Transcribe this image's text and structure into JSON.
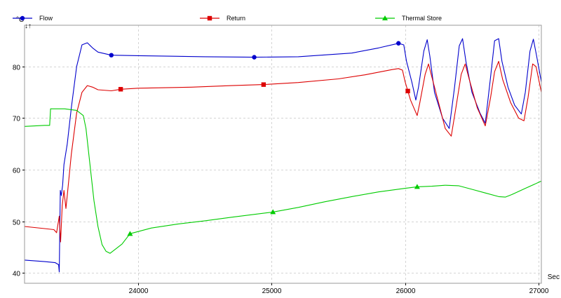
{
  "chart_data": {
    "type": "line",
    "ylabel": "°C",
    "xlabel": "Sec",
    "xlim": [
      23150,
      27020
    ],
    "ylim": [
      38,
      88
    ],
    "x_ticks": [
      24000,
      25000,
      26000,
      27000
    ],
    "y_ticks": [
      40,
      50,
      60,
      70,
      80
    ],
    "grid": true,
    "legend_position": "top",
    "series": [
      {
        "name": "Flow",
        "color": "#0000cc",
        "marker": "circle",
        "marker_x": [
          23800,
          24870,
          25950
        ],
        "points": [
          [
            23150,
            42.5
          ],
          [
            23300,
            42.2
          ],
          [
            23380,
            42
          ],
          [
            23405,
            41.6
          ],
          [
            23410,
            40.2
          ],
          [
            23418,
            56
          ],
          [
            23425,
            55
          ],
          [
            23435,
            57
          ],
          [
            23445,
            61
          ],
          [
            23470,
            65
          ],
          [
            23500,
            72
          ],
          [
            23540,
            80
          ],
          [
            23580,
            84.2
          ],
          [
            23620,
            84.6
          ],
          [
            23660,
            83.6
          ],
          [
            23700,
            82.8
          ],
          [
            23800,
            82.2
          ],
          [
            24000,
            82.1
          ],
          [
            24500,
            81.9
          ],
          [
            24870,
            81.8
          ],
          [
            25200,
            81.9
          ],
          [
            25600,
            82.6
          ],
          [
            25800,
            83.6
          ],
          [
            25950,
            84.5
          ],
          [
            25990,
            84.2
          ],
          [
            26010,
            81
          ],
          [
            26050,
            77
          ],
          [
            26080,
            73.5
          ],
          [
            26100,
            76
          ],
          [
            26140,
            83
          ],
          [
            26165,
            85.2
          ],
          [
            26185,
            82
          ],
          [
            26220,
            75
          ],
          [
            26280,
            70
          ],
          [
            26330,
            68
          ],
          [
            26370,
            76
          ],
          [
            26405,
            84
          ],
          [
            26430,
            85.4
          ],
          [
            26455,
            81
          ],
          [
            26500,
            75
          ],
          [
            26560,
            71
          ],
          [
            26600,
            69
          ],
          [
            26640,
            78
          ],
          [
            26670,
            85
          ],
          [
            26700,
            85.4
          ],
          [
            26725,
            81
          ],
          [
            26770,
            76
          ],
          [
            26820,
            72.5
          ],
          [
            26870,
            70.8
          ],
          [
            26900,
            75
          ],
          [
            26935,
            83
          ],
          [
            26960,
            85.3
          ],
          [
            26985,
            82
          ],
          [
            27020,
            77
          ]
        ]
      },
      {
        "name": "Return",
        "color": "#dd0000",
        "marker": "square",
        "marker_x": [
          23870,
          24940,
          26020
        ],
        "points": [
          [
            23150,
            49
          ],
          [
            23300,
            48.6
          ],
          [
            23370,
            48.4
          ],
          [
            23390,
            47.8
          ],
          [
            23410,
            51
          ],
          [
            23420,
            46
          ],
          [
            23432,
            53
          ],
          [
            23445,
            56
          ],
          [
            23460,
            52.5
          ],
          [
            23470,
            55
          ],
          [
            23500,
            63
          ],
          [
            23540,
            71
          ],
          [
            23580,
            75
          ],
          [
            23620,
            76.3
          ],
          [
            23660,
            76
          ],
          [
            23700,
            75.5
          ],
          [
            23800,
            75.3
          ],
          [
            23870,
            75.6
          ],
          [
            24000,
            75.8
          ],
          [
            24400,
            76
          ],
          [
            24700,
            76.3
          ],
          [
            24940,
            76.5
          ],
          [
            25200,
            76.9
          ],
          [
            25500,
            77.6
          ],
          [
            25700,
            78.4
          ],
          [
            25900,
            79.4
          ],
          [
            25950,
            79.6
          ],
          [
            25980,
            79.3
          ],
          [
            26000,
            77
          ],
          [
            26040,
            73.5
          ],
          [
            26090,
            70.5
          ],
          [
            26110,
            73
          ],
          [
            26150,
            78.5
          ],
          [
            26175,
            80.5
          ],
          [
            26200,
            78
          ],
          [
            26250,
            73
          ],
          [
            26300,
            68
          ],
          [
            26345,
            66.5
          ],
          [
            26380,
            72
          ],
          [
            26420,
            78.5
          ],
          [
            26450,
            80.5
          ],
          [
            26480,
            77.5
          ],
          [
            26540,
            72
          ],
          [
            26600,
            68.5
          ],
          [
            26640,
            74
          ],
          [
            26670,
            79
          ],
          [
            26700,
            81
          ],
          [
            26730,
            77.5
          ],
          [
            26790,
            73
          ],
          [
            26850,
            70
          ],
          [
            26890,
            69.5
          ],
          [
            26920,
            74
          ],
          [
            26955,
            80.5
          ],
          [
            26980,
            80
          ],
          [
            27020,
            75
          ]
        ]
      },
      {
        "name": "Thermal Store",
        "color": "#00cc00",
        "marker": "triangle",
        "marker_x": [
          23940,
          25010,
          26090
        ],
        "points": [
          [
            23150,
            68.4
          ],
          [
            23300,
            68.6
          ],
          [
            23338,
            68.6
          ],
          [
            23345,
            71.8
          ],
          [
            23450,
            71.8
          ],
          [
            23540,
            71.5
          ],
          [
            23590,
            70.5
          ],
          [
            23610,
            68
          ],
          [
            23640,
            61
          ],
          [
            23670,
            54
          ],
          [
            23700,
            49
          ],
          [
            23730,
            45.5
          ],
          [
            23760,
            44.2
          ],
          [
            23790,
            43.8
          ],
          [
            23830,
            44.6
          ],
          [
            23880,
            45.6
          ],
          [
            23940,
            47.6
          ],
          [
            24100,
            48.7
          ],
          [
            24300,
            49.5
          ],
          [
            24500,
            50.1
          ],
          [
            24700,
            50.8
          ],
          [
            25010,
            51.8
          ],
          [
            25200,
            52.7
          ],
          [
            25400,
            53.8
          ],
          [
            25600,
            54.8
          ],
          [
            25800,
            55.7
          ],
          [
            26000,
            56.4
          ],
          [
            26090,
            56.7
          ],
          [
            26200,
            56.8
          ],
          [
            26300,
            57
          ],
          [
            26400,
            56.9
          ],
          [
            26500,
            56.2
          ],
          [
            26600,
            55.5
          ],
          [
            26700,
            54.8
          ],
          [
            26750,
            54.7
          ],
          [
            26800,
            55.2
          ],
          [
            26900,
            56.4
          ],
          [
            27020,
            57.8
          ]
        ]
      }
    ]
  }
}
